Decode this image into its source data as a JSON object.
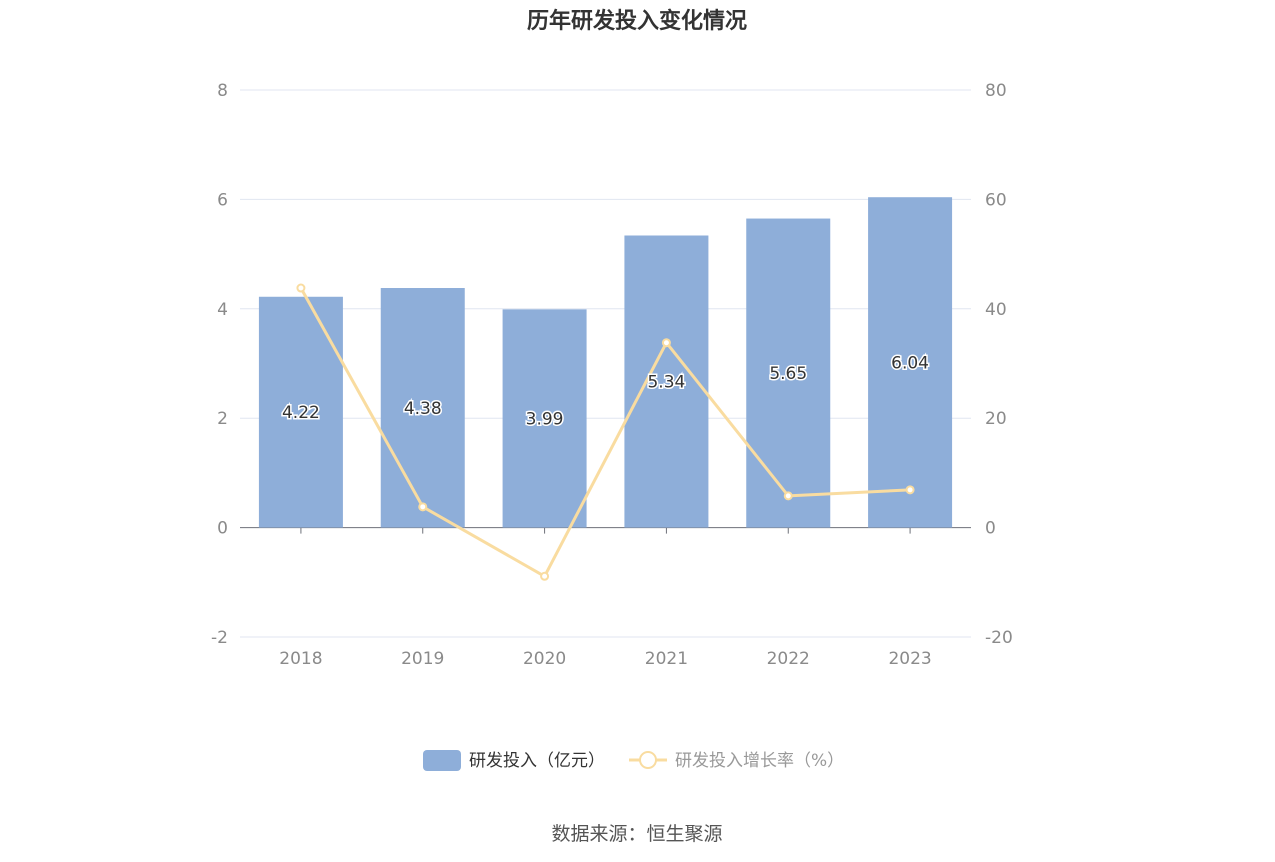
{
  "chart_data": {
    "type": "bar",
    "title": "历年研发投入变化情况",
    "categories": [
      "2018",
      "2019",
      "2020",
      "2021",
      "2022",
      "2023"
    ],
    "series": [
      {
        "name": "研发投入（亿元）",
        "type": "bar",
        "axis": "left",
        "color": "#8eaed9",
        "values": [
          4.22,
          4.38,
          3.99,
          5.34,
          5.65,
          6.04
        ]
      },
      {
        "name": "研发投入增长率（%）",
        "type": "line",
        "axis": "right",
        "color": "#f9dca0",
        "values": [
          43.8,
          3.8,
          -8.9,
          33.8,
          5.8,
          6.9
        ]
      }
    ],
    "y_left": {
      "min": -2,
      "max": 8,
      "ticks": [
        "-2",
        "0",
        "2",
        "4",
        "6",
        "8"
      ]
    },
    "y_right": {
      "min": -20,
      "max": 80,
      "ticks": [
        "-20",
        "0",
        "20",
        "40",
        "60",
        "80"
      ]
    },
    "grid": true,
    "legend_position": "bottom-center",
    "source": "数据来源：恒生聚源"
  }
}
